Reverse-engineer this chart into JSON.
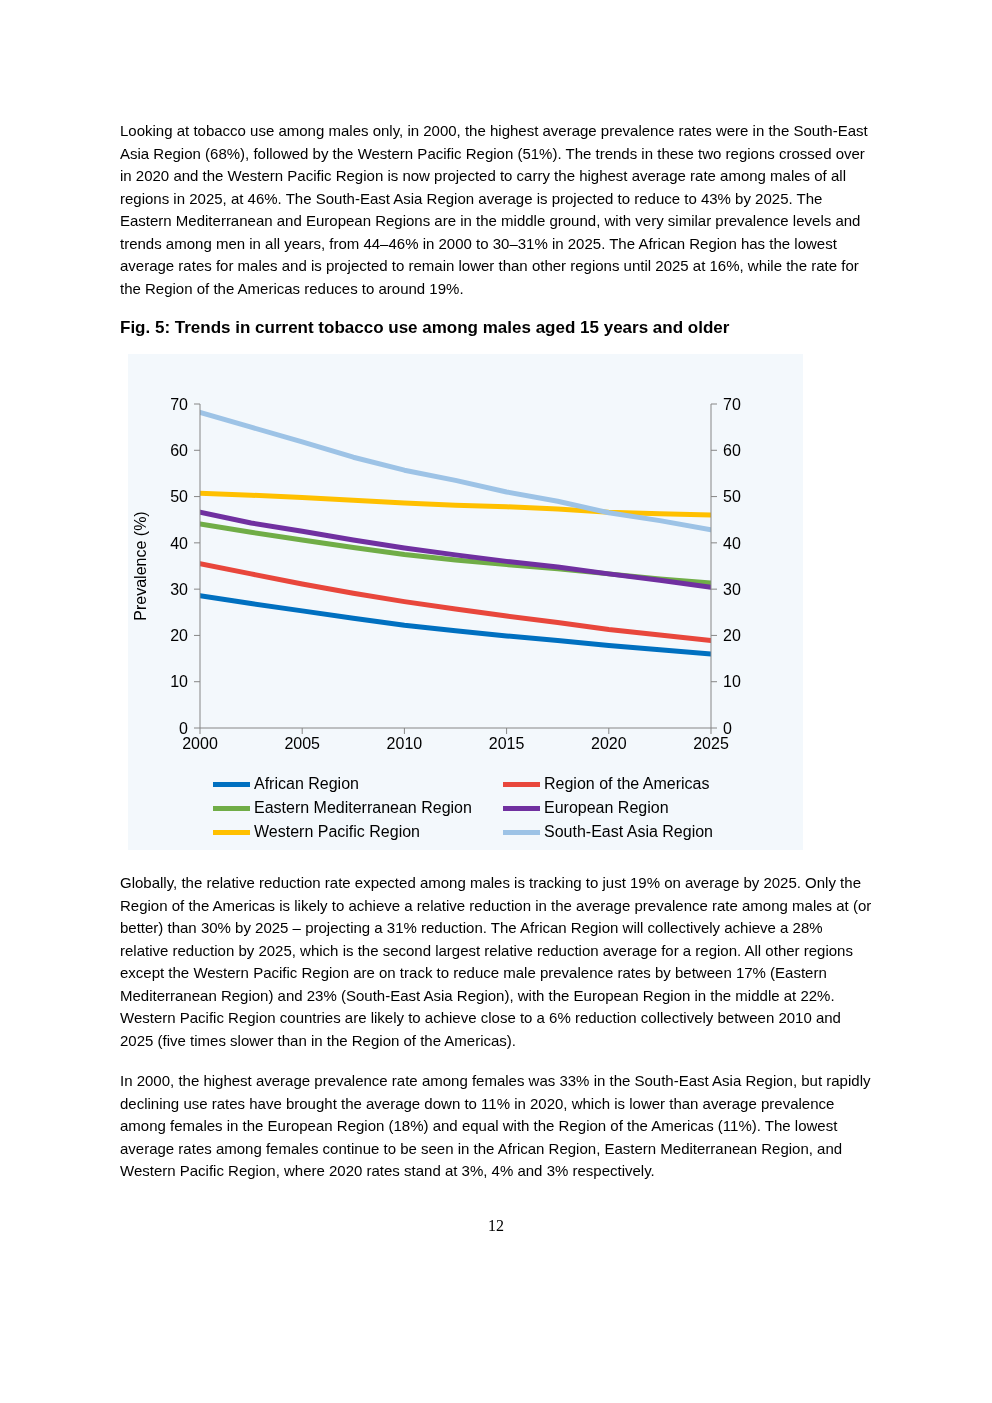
{
  "chart_data": {
    "type": "line",
    "title": "Fig. 5: Trends in current tobacco use among males aged 15 years and older",
    "annotations": [
      "Looking at tobacco use among males only, in 2000, the highest average prevalence rates were in the South-East Asia Region (68%), followed by the Western Pacific Region (51%). The trends in these two regions crossed over in 2020 and the Western Pacific Region is now projected to carry the highest average rate among males of all regions in 2025, at 46%. The South-East Asia Region average is projected to reduce to 43% by 2025. The Eastern Mediterranean and European Regions are in the middle ground, with very similar prevalence levels and trends among men in all years, from 44–46% in 2000 to 30–31% in 2025. The African Region has the lowest average rates for males and is projected to remain lower than other regions until 2025 at 16%, while the rate for the Region of the Americas reduces to around 19%.",
      "Globally, the relative reduction rate expected among males is tracking to just 19% on average by 2025. Only the Region of the Americas is likely to achieve a relative reduction in the average prevalence rate among males at (or better) than 30% by 2025 – projecting a 31% reduction. The African Region will collectively achieve a 28% relative reduction by 2025, which is the second largest relative reduction average for a region. All other regions except the Western Pacific Region are on track to reduce male prevalence rates by between 17% (Eastern Mediterranean Region) and 23% (South-East Asia Region), with the European Region in the middle at 22%. Western Pacific Region countries are likely to achieve close to a 6% reduction collectively between 2010 and 2025 (five times slower than in the Region of the Americas).",
      "In 2000, the highest average prevalence rate among females was 33% in the South-East Asia Region, but rapidly declining use rates have brought the average down to 11% in 2020, which is lower than average prevalence among females in the European Region (18%) and equal with the Region of the Americas (11%). The lowest average rates among females continue to be seen in the African Region, Eastern Mediterranean Region, and Western Pacific Region, where 2020 rates stand at 3%, 4% and 3% respectively.",
      "12"
    ],
    "ylabel": "Prevalence (%)",
    "x": [
      2000,
      2002.5,
      2005,
      2007.5,
      2010,
      2012.5,
      2015,
      2017.5,
      2020,
      2022.5,
      2025
    ],
    "xlim": [
      2000,
      2025
    ],
    "xticks": [
      2000,
      2005,
      2010,
      2015,
      2020,
      2025
    ],
    "ylim": [
      0,
      70
    ],
    "yticks": [
      0,
      10,
      20,
      30,
      40,
      50,
      60,
      70
    ],
    "y2lim": [
      0,
      70
    ],
    "y2ticks": [
      0,
      10,
      20,
      30,
      40,
      50,
      60,
      70
    ],
    "grid": false,
    "legend": "bottom",
    "marker": "none",
    "line_style": "solid",
    "series": [
      {
        "name": "African Region",
        "color": "#0070c0",
        "values": [
          28.6,
          26.9,
          25.3,
          23.7,
          22.2,
          21.0,
          19.9,
          18.9,
          17.8,
          16.9,
          16.0
        ]
      },
      {
        "name": "Region of the Americas",
        "color": "#e8473c",
        "values": [
          35.5,
          33.3,
          31.1,
          29.1,
          27.3,
          25.7,
          24.2,
          22.8,
          21.3,
          20.1,
          18.9
        ]
      },
      {
        "name": "Eastern Mediterranean Region",
        "color": "#70ad47",
        "values": [
          44.1,
          42.3,
          40.6,
          39.0,
          37.5,
          36.3,
          35.3,
          34.4,
          33.3,
          32.2,
          31.3
        ]
      },
      {
        "name": "European Region",
        "color": "#7030a0",
        "values": [
          46.6,
          44.3,
          42.5,
          40.6,
          38.9,
          37.4,
          36.0,
          34.8,
          33.3,
          31.9,
          30.4
        ]
      },
      {
        "name": "Western Pacific Region",
        "color": "#ffc000",
        "values": [
          50.7,
          50.3,
          49.8,
          49.2,
          48.6,
          48.1,
          47.8,
          47.3,
          46.6,
          46.3,
          46.0
        ]
      },
      {
        "name": "South-East Asia Region",
        "color": "#9dc3e6",
        "values": [
          68.2,
          65.0,
          61.8,
          58.5,
          55.7,
          53.5,
          51.0,
          49.0,
          46.5,
          44.8,
          42.8
        ]
      }
    ]
  }
}
